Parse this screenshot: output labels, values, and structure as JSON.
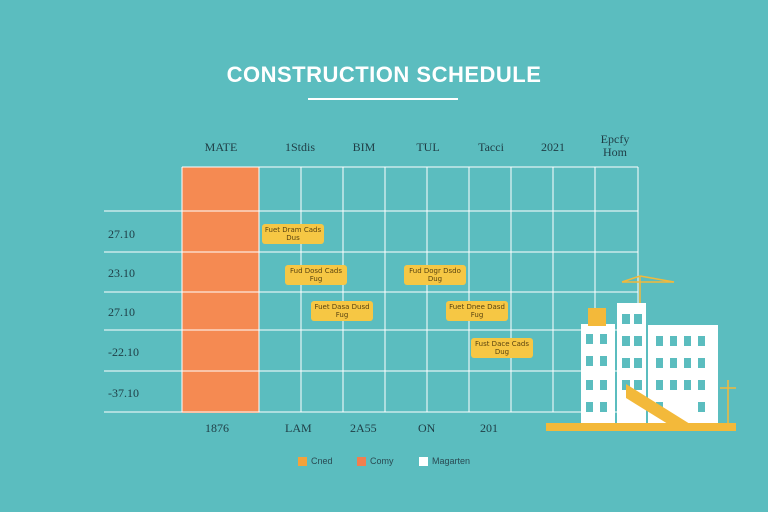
{
  "title": "CONSTRUCTION SCHEDULE",
  "column_headers": [
    "MATE",
    "1Stdis",
    "BIM",
    "TUL",
    "Tacci",
    "2021",
    "Epcfy\nHom"
  ],
  "row_labels": [
    "27.10",
    "23.10",
    "27.10",
    "-22.10",
    "-37.10"
  ],
  "footer_labels": [
    "1876",
    "LAM",
    "2A55",
    "ON",
    "201"
  ],
  "tasks": [
    {
      "label": "Fuet Dram Cads Dus"
    },
    {
      "label": "Fud Dosd Cads Fug"
    },
    {
      "label": "Fud Dogr Dsdo Dug"
    },
    {
      "label": "Fuet Dasa Dusd Fug"
    },
    {
      "label": "Fuet Dnee Dasd Fug"
    },
    {
      "label": "Fust Dace Cads Dug"
    }
  ],
  "legend": [
    {
      "label": "Cned",
      "color": "#f3a23b"
    },
    {
      "label": "Comy",
      "color": "#f07f4f"
    },
    {
      "label": "Magarten",
      "color": "#ffffff"
    }
  ],
  "colors": {
    "background": "#5bbdbf",
    "highlight_column": "#f58a52",
    "task_bar": "#f6c744",
    "grid": "#ffffff",
    "building": "#ffffff",
    "building_window": "#5bbdbf",
    "crane": "#f3b93a"
  }
}
